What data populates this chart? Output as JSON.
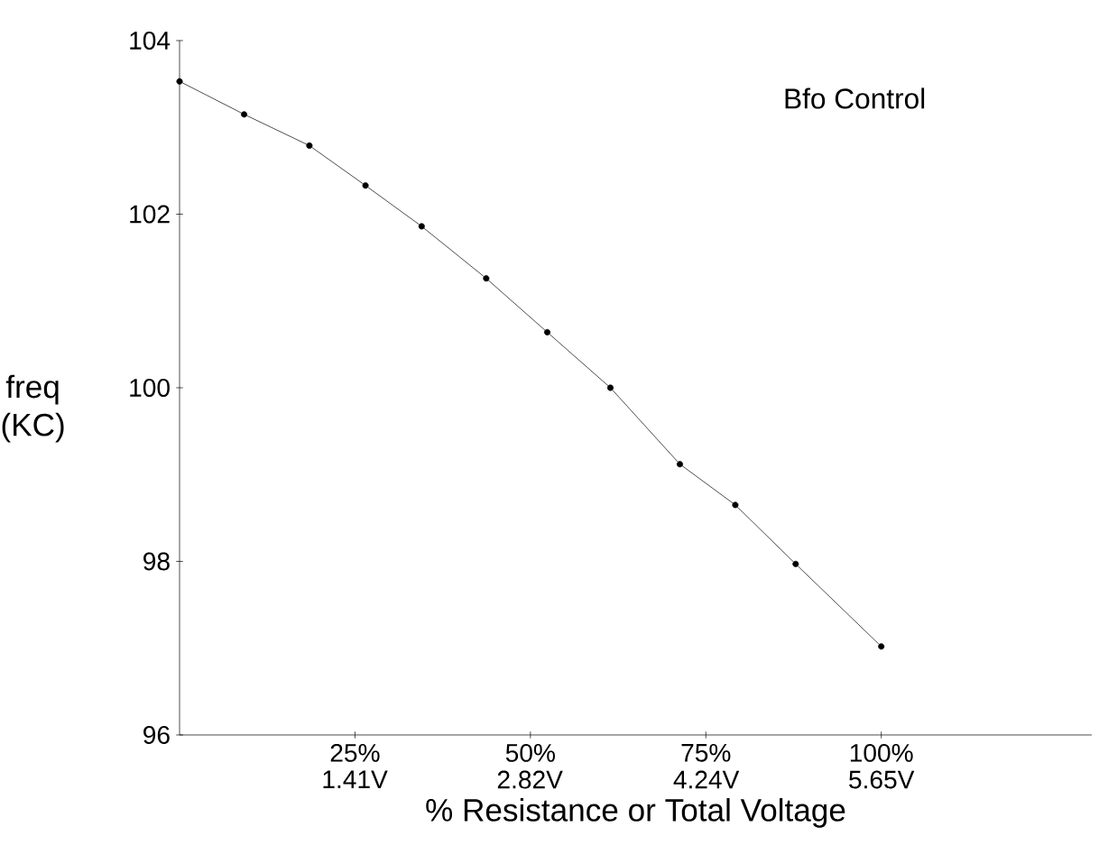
{
  "chart_data": {
    "type": "line",
    "title": "Bfo Control",
    "xlabel": "% Resistance or Total Voltage",
    "ylabel": "freq (KC)",
    "x": [
      0,
      9.2,
      18.5,
      26.5,
      34.5,
      43.7,
      52.4,
      61.4,
      71.3,
      79.2,
      87.8,
      100
    ],
    "values": [
      103.53,
      103.15,
      102.79,
      102.33,
      101.86,
      101.26,
      100.64,
      100.0,
      99.12,
      98.65,
      97.97,
      97.02
    ],
    "color": "#000000",
    "marker": "circle",
    "line_style": "solid",
    "xlim": [
      0,
      130
    ],
    "ylim": [
      96,
      104
    ],
    "xticks": [
      {
        "value": 25,
        "label": "25%"
      },
      {
        "value": 50,
        "label": "50%"
      },
      {
        "value": 75,
        "label": "75%"
      },
      {
        "value": 100,
        "label": "100%"
      }
    ],
    "x2lim": [
      0,
      7.345
    ],
    "x2ticks": [
      {
        "value": 1.41,
        "label": "1.41V"
      },
      {
        "value": 2.82,
        "label": "2.82V"
      },
      {
        "value": 4.24,
        "label": "4.24V"
      },
      {
        "value": 5.65,
        "label": "5.65V"
      }
    ],
    "yticks": [
      96,
      98,
      100,
      102,
      104
    ],
    "grid": false,
    "legend": false
  }
}
